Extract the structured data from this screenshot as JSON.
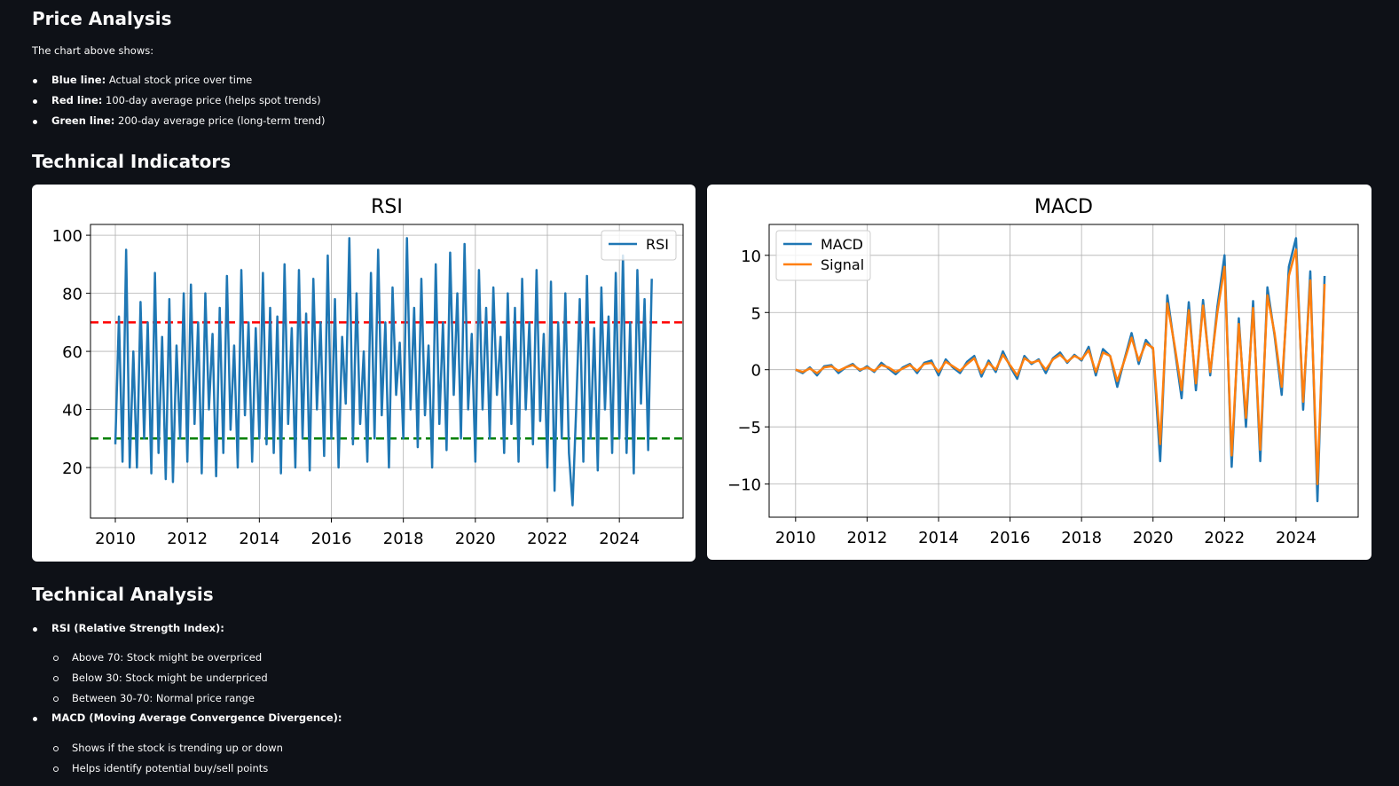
{
  "price_analysis": {
    "title": "Price Analysis",
    "intro": "The chart above shows:",
    "items": [
      {
        "label": "Blue line:",
        "text": "Actual stock price over time"
      },
      {
        "label": "Red line:",
        "text": "100-day average price (helps spot trends)"
      },
      {
        "label": "Green line:",
        "text": "200-day average price (long-term trend)"
      }
    ]
  },
  "technical_indicators": {
    "title": "Technical Indicators"
  },
  "chart_data": [
    {
      "type": "line",
      "title": "RSI",
      "x": [
        2010.0,
        2010.1,
        2010.2,
        2010.3,
        2010.4,
        2010.5,
        2010.6,
        2010.7,
        2010.8,
        2010.9,
        2011.0,
        2011.1,
        2011.2,
        2011.3,
        2011.4,
        2011.5,
        2011.6,
        2011.7,
        2011.8,
        2011.9,
        2012.0,
        2012.1,
        2012.2,
        2012.3,
        2012.4,
        2012.5,
        2012.6,
        2012.7,
        2012.8,
        2012.9,
        2013.0,
        2013.1,
        2013.2,
        2013.3,
        2013.4,
        2013.5,
        2013.6,
        2013.7,
        2013.8,
        2013.9,
        2014.0,
        2014.1,
        2014.2,
        2014.3,
        2014.4,
        2014.5,
        2014.6,
        2014.7,
        2014.8,
        2014.9,
        2015.0,
        2015.1,
        2015.2,
        2015.3,
        2015.4,
        2015.5,
        2015.6,
        2015.7,
        2015.8,
        2015.9,
        2016.0,
        2016.1,
        2016.2,
        2016.3,
        2016.4,
        2016.5,
        2016.6,
        2016.7,
        2016.8,
        2016.9,
        2017.0,
        2017.1,
        2017.2,
        2017.3,
        2017.4,
        2017.5,
        2017.6,
        2017.7,
        2017.8,
        2017.9,
        2018.0,
        2018.1,
        2018.2,
        2018.3,
        2018.4,
        2018.5,
        2018.6,
        2018.7,
        2018.8,
        2018.9,
        2019.0,
        2019.1,
        2019.2,
        2019.3,
        2019.4,
        2019.5,
        2019.6,
        2019.7,
        2019.8,
        2019.9,
        2020.0,
        2020.1,
        2020.2,
        2020.3,
        2020.4,
        2020.5,
        2020.6,
        2020.7,
        2020.8,
        2020.9,
        2021.0,
        2021.1,
        2021.2,
        2021.3,
        2021.4,
        2021.5,
        2021.6,
        2021.7,
        2021.8,
        2021.9,
        2022.0,
        2022.1,
        2022.2,
        2022.3,
        2022.4,
        2022.5,
        2022.6,
        2022.7,
        2022.8,
        2022.9,
        2023.0,
        2023.1,
        2023.2,
        2023.3,
        2023.4,
        2023.5,
        2023.6,
        2023.7,
        2023.8,
        2023.9,
        2024.0,
        2024.1,
        2024.2,
        2024.3,
        2024.4,
        2024.5,
        2024.6,
        2024.7,
        2024.8,
        2024.9
      ],
      "series": [
        {
          "name": "RSI",
          "color": "#1f77b4",
          "values": [
            28,
            72,
            22,
            95,
            20,
            60,
            20,
            77,
            30,
            70,
            18,
            87,
            25,
            65,
            16,
            78,
            15,
            62,
            30,
            80,
            22,
            83,
            35,
            70,
            18,
            80,
            40,
            66,
            17,
            75,
            25,
            86,
            33,
            62,
            20,
            88,
            38,
            70,
            22,
            68,
            30,
            87,
            28,
            75,
            25,
            72,
            18,
            90,
            35,
            68,
            20,
            88,
            30,
            73,
            19,
            85,
            40,
            70,
            24,
            93,
            30,
            78,
            20,
            65,
            42,
            99,
            28,
            80,
            35,
            60,
            22,
            87,
            30,
            95,
            38,
            70,
            20,
            82,
            45,
            63,
            30,
            99,
            40,
            75,
            27,
            85,
            38,
            62,
            20,
            90,
            35,
            70,
            26,
            94,
            45,
            80,
            30,
            97,
            40,
            66,
            22,
            88,
            40,
            75,
            30,
            82,
            45,
            65,
            25,
            80,
            35,
            75,
            22,
            85,
            40,
            70,
            28,
            88,
            36,
            66,
            20,
            84,
            12,
            70,
            30,
            80,
            25,
            7,
            40,
            78,
            22,
            86,
            30,
            68,
            19,
            82,
            40,
            72,
            25,
            87,
            30,
            93,
            25,
            70,
            18,
            88,
            42,
            78,
            26,
            85
          ]
        }
      ],
      "hlines": [
        {
          "value": 70,
          "color": "#ff0000"
        },
        {
          "value": 30,
          "color": "#008000"
        }
      ],
      "xlim": [
        2009.31,
        2025.77
      ],
      "ylim": [
        2.6,
        103.7
      ],
      "xticks": [
        2010,
        2012,
        2014,
        2016,
        2018,
        2020,
        2022,
        2024
      ],
      "yticks": [
        20,
        40,
        60,
        80,
        100
      ],
      "grid": true,
      "legend": "upper right"
    },
    {
      "type": "line",
      "title": "MACD",
      "x": [
        2010.0,
        2010.2,
        2010.4,
        2010.6,
        2010.8,
        2011.0,
        2011.2,
        2011.4,
        2011.6,
        2011.8,
        2012.0,
        2012.2,
        2012.4,
        2012.6,
        2012.8,
        2013.0,
        2013.2,
        2013.4,
        2013.6,
        2013.8,
        2014.0,
        2014.2,
        2014.4,
        2014.6,
        2014.8,
        2015.0,
        2015.2,
        2015.4,
        2015.6,
        2015.8,
        2016.0,
        2016.2,
        2016.4,
        2016.6,
        2016.8,
        2017.0,
        2017.2,
        2017.4,
        2017.6,
        2017.8,
        2018.0,
        2018.2,
        2018.4,
        2018.6,
        2018.8,
        2019.0,
        2019.2,
        2019.4,
        2019.6,
        2019.8,
        2020.0,
        2020.2,
        2020.4,
        2020.6,
        2020.8,
        2021.0,
        2021.2,
        2021.4,
        2021.6,
        2021.8,
        2022.0,
        2022.2,
        2022.4,
        2022.6,
        2022.8,
        2023.0,
        2023.2,
        2023.4,
        2023.6,
        2023.8,
        2024.0,
        2024.2,
        2024.4,
        2024.6,
        2024.8
      ],
      "series": [
        {
          "name": "MACD",
          "color": "#1f77b4",
          "values": [
            0,
            -0.3,
            0.2,
            -0.5,
            0.3,
            0.4,
            -0.3,
            0.2,
            0.5,
            -0.1,
            0.3,
            -0.2,
            0.6,
            0.1,
            -0.4,
            0.2,
            0.5,
            -0.3,
            0.6,
            0.8,
            -0.5,
            0.9,
            0.2,
            -0.3,
            0.7,
            1.2,
            -0.6,
            0.8,
            -0.2,
            1.6,
            0.3,
            -0.8,
            1.2,
            0.5,
            0.9,
            -0.3,
            1.0,
            1.5,
            0.6,
            1.3,
            0.8,
            2.0,
            -0.5,
            1.8,
            1.2,
            -1.5,
            0.9,
            3.2,
            0.5,
            2.6,
            1.8,
            -8.0,
            6.5,
            2.0,
            -2.5,
            5.9,
            -1.8,
            6.1,
            -0.5,
            5.5,
            10.0,
            -8.5,
            4.5,
            -5.0,
            6.0,
            -8.0,
            7.2,
            3.0,
            -2.2,
            9.0,
            11.5,
            -3.5,
            8.6,
            -11.5,
            8.2
          ]
        },
        {
          "name": "Signal",
          "color": "#ff7f0e",
          "values": [
            0,
            -0.2,
            0.1,
            -0.3,
            0.2,
            0.3,
            -0.1,
            0.2,
            0.4,
            0,
            0.2,
            -0.1,
            0.4,
            0.2,
            -0.2,
            0.1,
            0.4,
            -0.1,
            0.5,
            0.6,
            -0.2,
            0.7,
            0.3,
            -0.1,
            0.5,
            1.0,
            -0.3,
            0.6,
            0,
            1.3,
            0.4,
            -0.5,
            1.0,
            0.6,
            0.8,
            0,
            0.9,
            1.3,
            0.7,
            1.2,
            0.9,
            1.7,
            -0.2,
            1.5,
            1.2,
            -1.0,
            0.8,
            2.8,
            0.8,
            2.3,
            1.9,
            -6.5,
            5.8,
            2.2,
            -1.8,
            5.2,
            -1.2,
            5.6,
            -0.2,
            5.0,
            9.0,
            -7.5,
            4.0,
            -4.2,
            5.4,
            -7.0,
            6.5,
            3.2,
            -1.5,
            8.2,
            10.5,
            -2.8,
            7.8,
            -10.0,
            7.5
          ]
        }
      ],
      "xlim": [
        2009.26,
        2025.74
      ],
      "ylim": [
        -12.9,
        12.7
      ],
      "xticks": [
        2010,
        2012,
        2014,
        2016,
        2018,
        2020,
        2022,
        2024
      ],
      "yticks": [
        {
          "value": -10,
          "label": "−10"
        },
        {
          "value": -5,
          "label": "−5"
        },
        0,
        5,
        10
      ],
      "grid": true,
      "legend": "upper left"
    }
  ],
  "technical_analysis": {
    "title": "Technical Analysis",
    "items": [
      {
        "label": "RSI (Relative Strength Index):",
        "subitems": [
          "Above 70: Stock might be overpriced",
          "Below 30: Stock might be underpriced",
          "Between 30-70: Normal price range"
        ]
      },
      {
        "label": "MACD (Moving Average Convergence Divergence):",
        "subitems": [
          "Shows if the stock is trending up or down",
          "Helps identify potential buy/sell points"
        ]
      }
    ]
  }
}
